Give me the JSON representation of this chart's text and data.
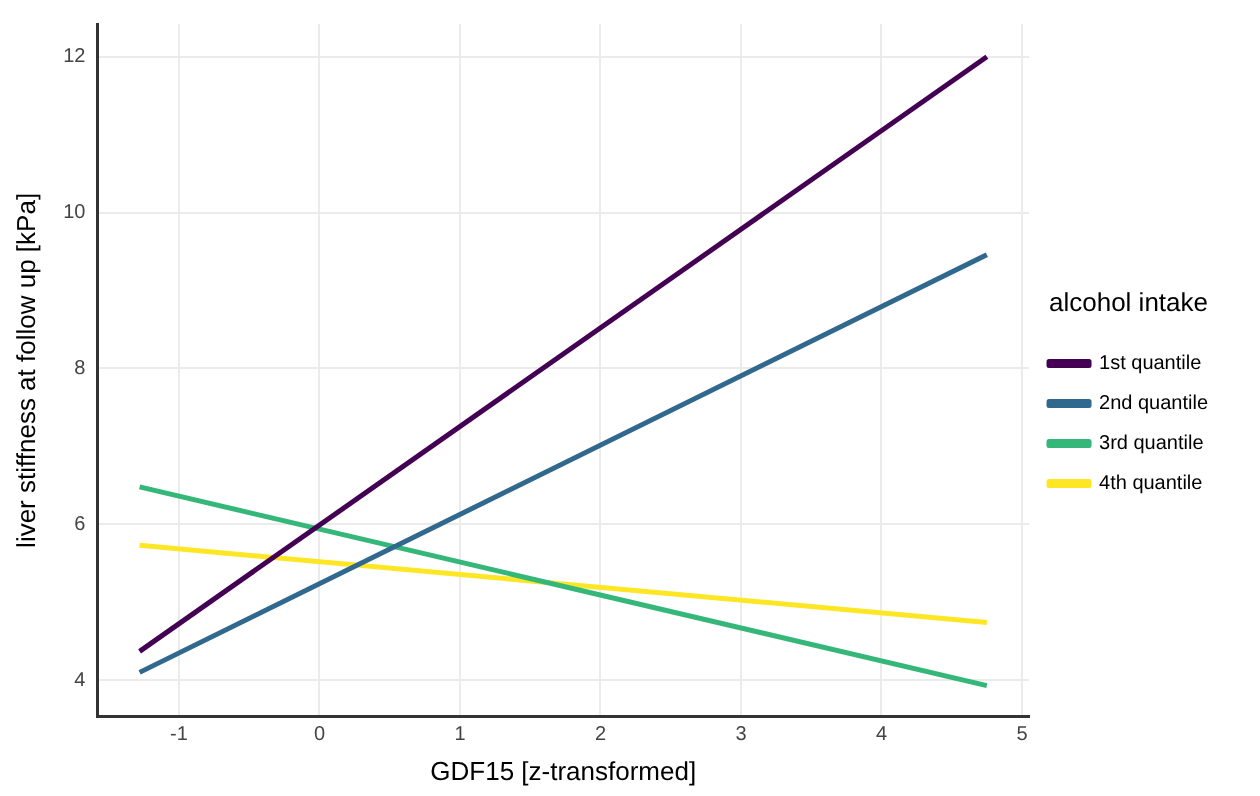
{
  "chart_data": {
    "type": "line",
    "xlabel": "GDF15 [z-transformed]",
    "ylabel": "liver stiffness at follow up [kPa]",
    "legend_title": "alcohol intake",
    "legend": "right",
    "grid": true,
    "marker": "none",
    "line_style": "solid",
    "x": [
      -1.28,
      4.75
    ],
    "series": [
      {
        "name": "1st quantile",
        "color": "#440154",
        "values": [
          4.37,
          12.0
        ]
      },
      {
        "name": "2nd quantile",
        "color": "#31688e",
        "values": [
          4.1,
          9.46
        ]
      },
      {
        "name": "3rd quantile",
        "color": "#35b779",
        "values": [
          6.48,
          3.93
        ]
      },
      {
        "name": "4th quantile",
        "color": "#fde725",
        "values": [
          5.73,
          4.74
        ]
      }
    ],
    "xlim": [
      -1.58,
      5.05
    ],
    "xticks": [
      -1,
      0,
      1,
      2,
      3,
      4,
      5
    ],
    "ylim": [
      3.53,
      12.42
    ],
    "yticks": [
      4,
      6,
      8,
      10,
      12
    ]
  }
}
